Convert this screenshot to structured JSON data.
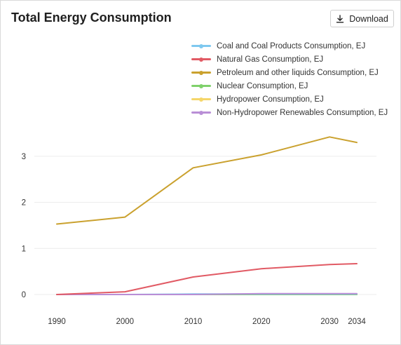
{
  "header": {
    "title": "Total Energy Consumption",
    "download_label": "Download"
  },
  "chart_data": {
    "type": "line",
    "title": "Total Energy Consumption",
    "x": [
      1990,
      2000,
      2010,
      2020,
      2030,
      2034
    ],
    "x_tick_labels": [
      "1990",
      "2000",
      "2010",
      "2020",
      "2030",
      "2034"
    ],
    "y_ticks": [
      0,
      1,
      2,
      3
    ],
    "y_tick_labels": [
      "0",
      "1",
      "2",
      "3"
    ],
    "ylim": [
      0,
      3.9
    ],
    "grid": true,
    "legend_position": "top-right",
    "series": [
      {
        "name": "Coal and Coal Products Consumption, EJ",
        "color": "#7ec8ef",
        "values": [
          0,
          0,
          0.01,
          0.01,
          0.01,
          0.01
        ]
      },
      {
        "name": "Natural Gas Consumption, EJ",
        "color": "#e15a64",
        "values": [
          0,
          0.06,
          0.38,
          0.56,
          0.65,
          0.67
        ]
      },
      {
        "name": "Petroleum and other liquids Consumption, EJ",
        "color": "#caa12e",
        "values": [
          1.53,
          1.68,
          2.75,
          3.03,
          3.42,
          3.3
        ]
      },
      {
        "name": "Nuclear Consumption, EJ",
        "color": "#7fd16b",
        "values": [
          0,
          0,
          0,
          0,
          0,
          0
        ]
      },
      {
        "name": "Hydropower Consumption, EJ",
        "color": "#f5d66a",
        "values": [
          0,
          0,
          0,
          0,
          0,
          0
        ]
      },
      {
        "name": "Non-Hydropower Renewables Consumption, EJ",
        "color": "#b98ed6",
        "values": [
          0,
          0,
          0,
          0.02,
          0.02,
          0.02
        ]
      }
    ]
  }
}
